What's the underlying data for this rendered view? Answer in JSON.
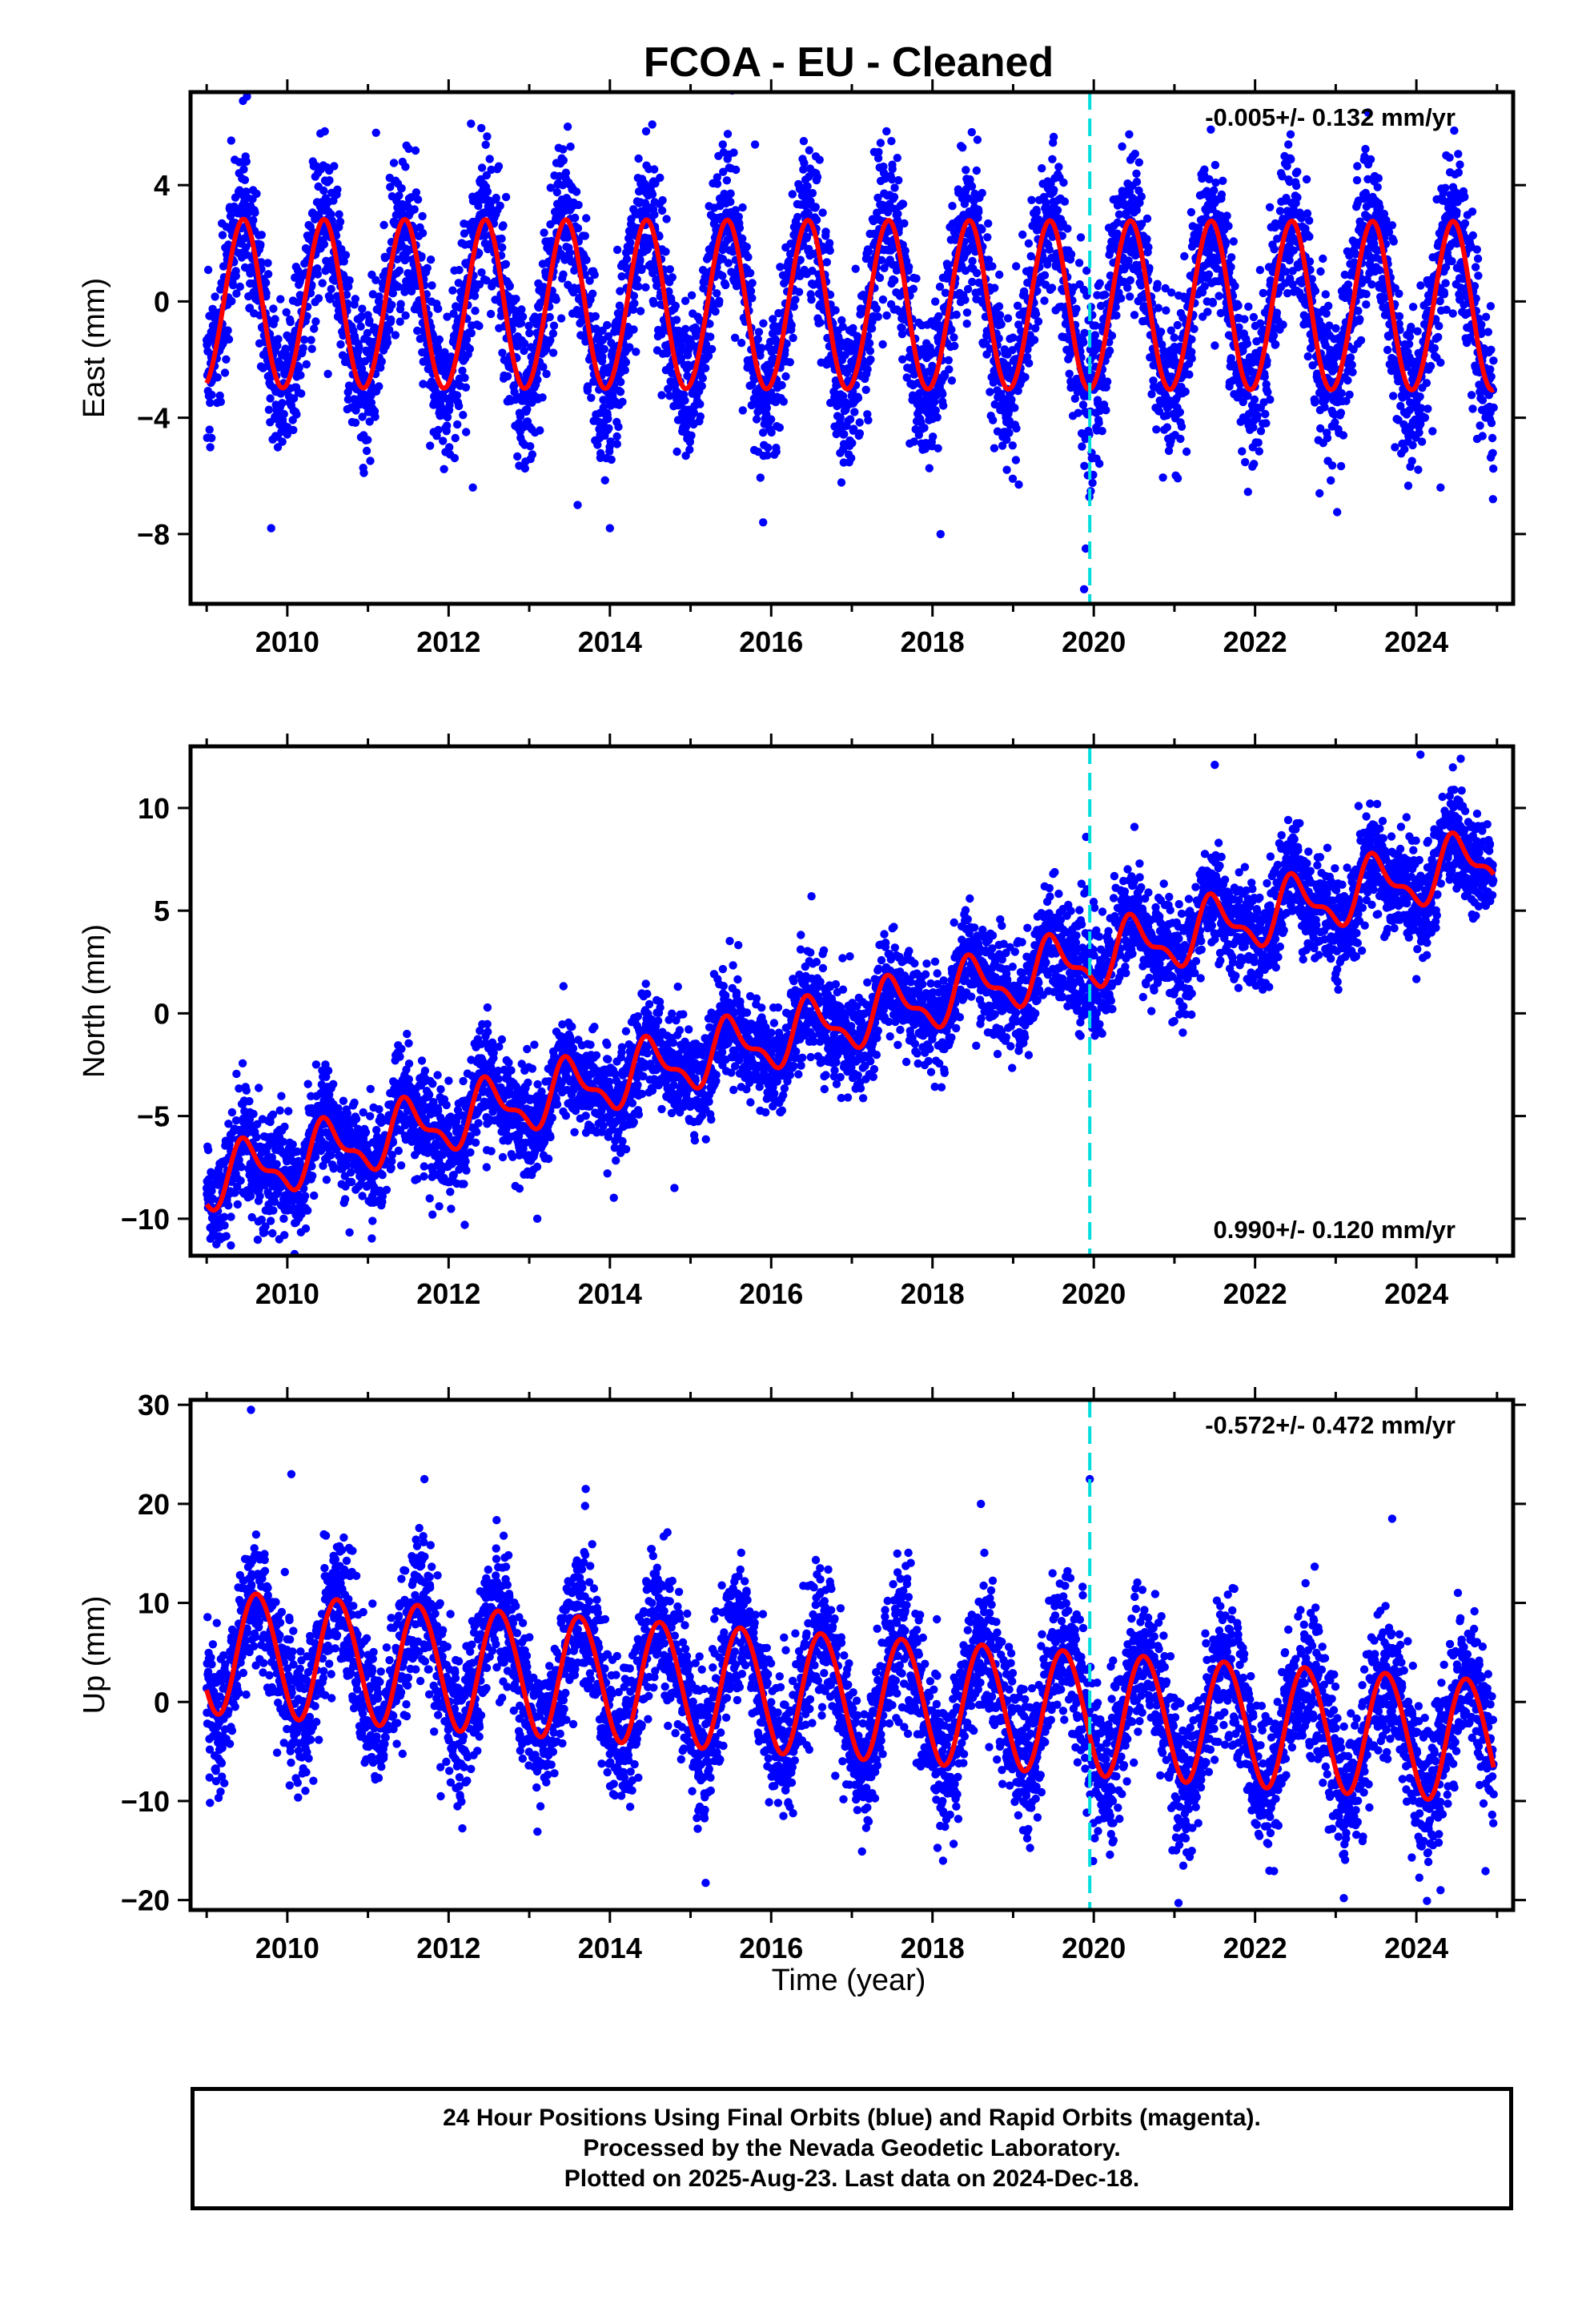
{
  "chart_data": {
    "type": "scatter",
    "title": "FCOA  - EU - Cleaned",
    "xlabel": "Time (year)",
    "xlim": [
      2008.8,
      2025.2
    ],
    "xticks": [
      2010,
      2012,
      2014,
      2016,
      2018,
      2020,
      2022,
      2024
    ],
    "xtick_labels": [
      "2010",
      "2012",
      "2014",
      "2016",
      "2018",
      "2020",
      "2022",
      "2024"
    ],
    "equipment_change_epoch": 2019.95,
    "data_span": [
      2009.0,
      2024.96
    ],
    "panels": [
      {
        "id": "east",
        "ylabel": "East (mm)",
        "ylim": [
          -10.4,
          7.2
        ],
        "yticks": [
          4,
          0,
          -4,
          -8
        ],
        "ytick_labels": [
          "4",
          "0",
          "−4",
          "−8"
        ],
        "rate_label": "-0.005+/- 0.132 mm/yr",
        "rate_position": "top-right",
        "model": {
          "offset": -0.15,
          "rate": -0.005,
          "annual_amp": 2.9,
          "annual_peak_year_fraction": 0.45,
          "semiannual_amp": 0.1,
          "semiannual_phase": 0.0,
          "amp_trend_per_yr": 0.0
        },
        "scatter_sigma": 1.35,
        "outliers": [
          [
            2009.45,
            6.9
          ],
          [
            2009.5,
            7.05
          ],
          [
            2009.8,
            -7.8
          ],
          [
            2011.1,
            5.8
          ],
          [
            2012.3,
            -6.4
          ],
          [
            2013.6,
            -7.0
          ],
          [
            2014.0,
            -7.8
          ],
          [
            2015.4,
            5.4
          ],
          [
            2015.8,
            5.4
          ],
          [
            2015.9,
            -7.6
          ],
          [
            2018.1,
            -8.0
          ],
          [
            2019.9,
            -8.5
          ],
          [
            2019.88,
            -9.9
          ],
          [
            2022.8,
            -6.6
          ],
          [
            2023.4,
            6.5
          ],
          [
            2024.3,
            -6.4
          ],
          [
            2024.95,
            -6.8
          ]
        ]
      },
      {
        "id": "north",
        "ylabel": "North (mm)",
        "ylim": [
          -11.8,
          13.0
        ],
        "yticks": [
          10,
          5,
          0,
          -5,
          -10
        ],
        "ytick_labels": [
          "10",
          "5",
          "0",
          "−5",
          "−10"
        ],
        "rate_label": "0.990+/- 0.120 mm/yr",
        "rate_position": "bottom-right",
        "model": {
          "offset": -8.2,
          "rate": 0.99,
          "annual_amp": 1.3,
          "annual_peak_year_fraction": 0.5,
          "semiannual_amp": 0.55,
          "semiannual_phase": 1.2,
          "amp_trend_per_yr": 0.0
        },
        "scatter_sigma": 1.25,
        "outliers": [
          [
            2009.3,
            -11.3
          ],
          [
            2009.9,
            -11.0
          ],
          [
            2011.8,
            -9.8
          ],
          [
            2012.2,
            -10.3
          ],
          [
            2013.1,
            -10.0
          ],
          [
            2014.8,
            -8.5
          ],
          [
            2016.5,
            5.7
          ],
          [
            2021.5,
            12.1
          ],
          [
            2024.05,
            12.6
          ],
          [
            2024.55,
            12.4
          ]
        ]
      },
      {
        "id": "up",
        "ylabel": "Up (mm)",
        "ylim": [
          -21.0,
          30.5
        ],
        "yticks": [
          30,
          20,
          10,
          0,
          -10,
          -20
        ],
        "ytick_labels": [
          "30",
          "20",
          "10",
          "0",
          "−10",
          "−20"
        ],
        "rate_label": "-0.572+/- 0.472 mm/yr",
        "rate_position": "top-right",
        "model": {
          "offset": 5.2,
          "rate": -0.572,
          "annual_amp": 6.2,
          "annual_peak_year_fraction": 0.63,
          "semiannual_amp": 0.3,
          "semiannual_phase": 0.5,
          "amp_trend_per_yr": 0.0
        },
        "scatter_sigma": 3.6,
        "outliers": [
          [
            2009.55,
            29.5
          ],
          [
            2010.05,
            23.0
          ],
          [
            2011.7,
            22.5
          ],
          [
            2013.7,
            21.5
          ],
          [
            2018.6,
            20.0
          ],
          [
            2019.95,
            22.5
          ],
          [
            2021.05,
            -20.3
          ],
          [
            2023.1,
            -19.8
          ],
          [
            2023.7,
            18.5
          ],
          [
            2024.3,
            -19.0
          ]
        ]
      }
    ],
    "series": [
      {
        "name": "Final Orbits",
        "color": "#0000ff",
        "marker": "dot"
      },
      {
        "name": "Rapid Orbits",
        "color": "#ff00ff",
        "marker": "dot"
      },
      {
        "name": "model fit",
        "color": "#ff0000",
        "marker": "line"
      },
      {
        "name": "equipment change",
        "color": "#00dddd",
        "marker": "dashed-line"
      }
    ]
  },
  "footer": {
    "line1": "24 Hour Positions Using Final Orbits (blue) and Rapid Orbits (magenta).",
    "line2": "Processed by the Nevada Geodetic Laboratory.",
    "line3": "Plotted on 2025-Aug-23. Last data on 2024-Dec-18."
  }
}
